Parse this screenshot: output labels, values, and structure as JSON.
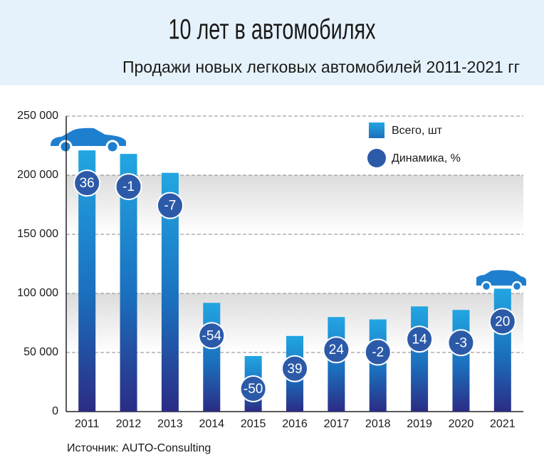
{
  "chart_data": {
    "type": "bar",
    "title": "10 лет в автомобилях",
    "subtitle": "Продажи новых легковых автомобилей 2011-2021 гг",
    "source": "Источник: AUTO-Consulting",
    "categories": [
      "2011",
      "2012",
      "2013",
      "2014",
      "2015",
      "2016",
      "2017",
      "2018",
      "2019",
      "2020",
      "2021"
    ],
    "series": [
      {
        "name": "Всего, шт",
        "color": "#1c9ad8",
        "values": [
          221000,
          218000,
          202000,
          92000,
          47000,
          64000,
          80000,
          78000,
          89000,
          86000,
          104000
        ]
      },
      {
        "name": "Динамика, %",
        "color": "#2c5aa8",
        "values": [
          36,
          -1,
          -7,
          -54,
          -50,
          39,
          24,
          -2,
          14,
          -3,
          20
        ]
      }
    ],
    "ylim": [
      0,
      250000
    ],
    "yticks": [
      0,
      {
        "value": 50000,
        "label": "50 000"
      },
      {
        "value": 100000,
        "label": "100 000"
      },
      {
        "value": 150000,
        "label": "150 000"
      },
      {
        "value": 200000,
        "label": "200 000"
      },
      {
        "value": 250000,
        "label": "250 000"
      }
    ],
    "grid": true
  }
}
